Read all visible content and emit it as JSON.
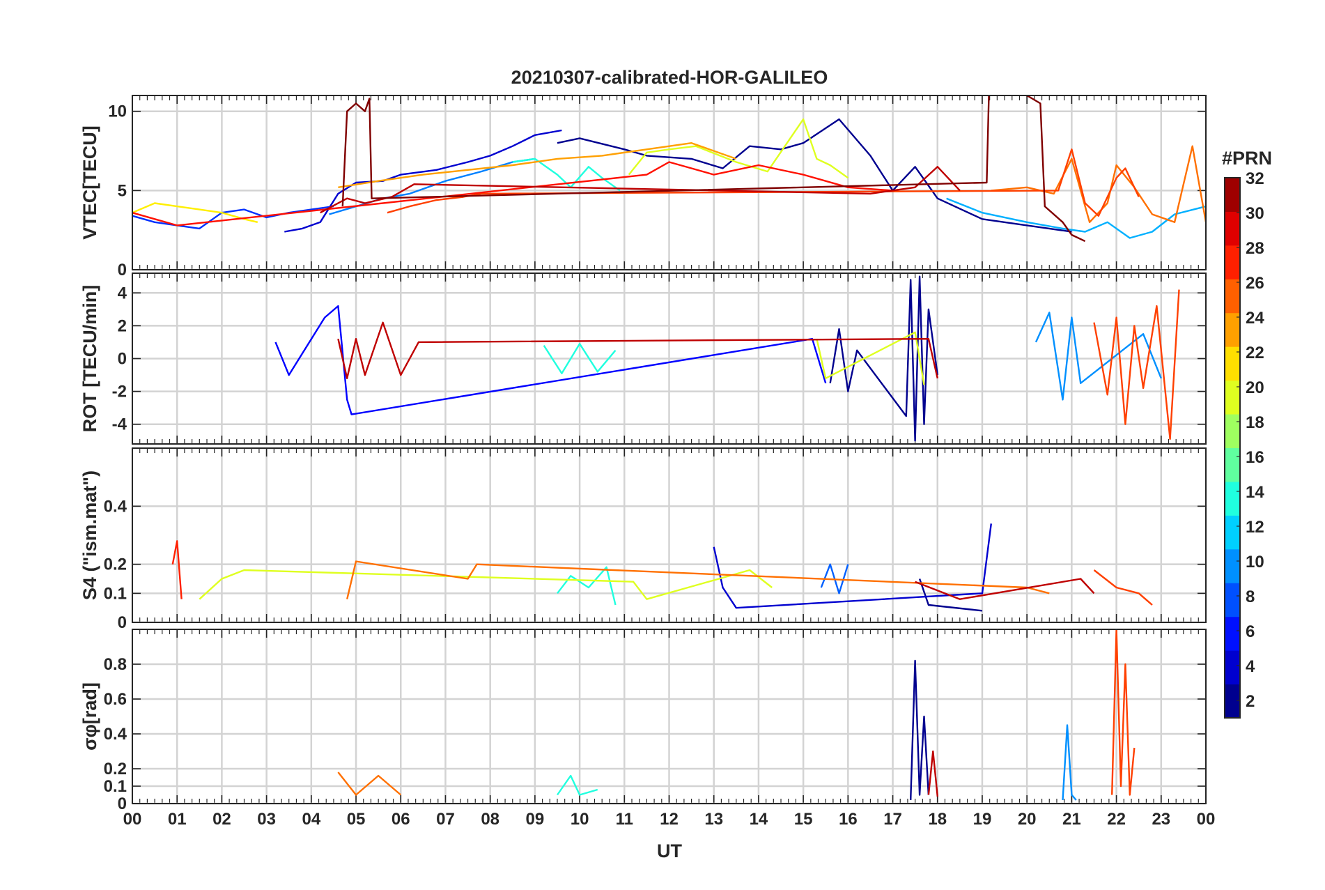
{
  "figure": {
    "title": "20210307-calibrated-HOR-GALILEO",
    "xlabel": "UT",
    "xticks": [
      "00",
      "01",
      "02",
      "03",
      "04",
      "05",
      "06",
      "07",
      "08",
      "09",
      "10",
      "11",
      "12",
      "13",
      "14",
      "15",
      "16",
      "17",
      "18",
      "19",
      "20",
      "21",
      "22",
      "23",
      "00"
    ]
  },
  "colorbar": {
    "label": "#PRN",
    "min": 1,
    "max": 32,
    "ticks": [
      "2",
      "4",
      "6",
      "8",
      "10",
      "12",
      "14",
      "16",
      "18",
      "20",
      "22",
      "24",
      "26",
      "28",
      "30",
      "32"
    ],
    "colormap": "jet (16 discrete steps)"
  },
  "chart_data": [
    {
      "type": "line",
      "name": "vtec-panel",
      "ylabel": "VTEC[TECU]",
      "xlim": [
        0,
        24
      ],
      "ylim": [
        0,
        11
      ],
      "yticks": [
        "0",
        "5",
        "10"
      ],
      "grid": true,
      "series": [
        {
          "prn": 1,
          "color": "#00008f",
          "x": [
            9.5,
            10.0,
            11.0,
            11.5,
            12.5,
            13.2,
            13.8,
            14.5,
            15.0,
            15.8,
            16.5,
            17.0,
            17.5,
            18.0,
            19.0,
            20.0,
            21.0
          ],
          "y": [
            8.0,
            8.3,
            7.6,
            7.2,
            7.0,
            6.4,
            7.8,
            7.6,
            8.0,
            9.5,
            7.2,
            5.0,
            6.5,
            4.5,
            3.2,
            2.8,
            2.4
          ]
        },
        {
          "prn": 3,
          "color": "#0000cf",
          "x": [
            3.4,
            3.8,
            4.2,
            4.6,
            5.0,
            5.6,
            6.0,
            6.8,
            7.5,
            8.0,
            8.5,
            9.0,
            9.6
          ],
          "y": [
            2.4,
            2.6,
            3.0,
            4.8,
            5.5,
            5.6,
            6.0,
            6.3,
            6.8,
            7.2,
            7.8,
            8.5,
            8.8
          ]
        },
        {
          "prn": 5,
          "color": "#0030ff",
          "x": [
            0.0,
            0.5,
            1.0,
            1.5,
            2.0,
            2.5,
            3.0,
            3.5,
            4.0,
            4.5
          ],
          "y": [
            3.4,
            3.0,
            2.8,
            2.6,
            3.6,
            3.8,
            3.3,
            3.6,
            3.8,
            4.0
          ]
        },
        {
          "prn": 8,
          "color": "#0080ff",
          "x": [
            4.4,
            5.0,
            5.6,
            6.2,
            7.0,
            7.8,
            8.5,
            9.0
          ],
          "y": [
            3.5,
            4.0,
            4.5,
            4.8,
            5.6,
            6.2,
            6.8,
            7.0
          ]
        },
        {
          "prn": 10,
          "color": "#00b0ff",
          "x": [
            18.2,
            19.0,
            20.0,
            20.8,
            21.3,
            21.8,
            22.3,
            22.8,
            23.3,
            24.0
          ],
          "y": [
            4.5,
            3.6,
            3.0,
            2.6,
            2.4,
            3.0,
            2.0,
            2.4,
            3.5,
            4.0
          ]
        },
        {
          "prn": 13,
          "color": "#20ffdf",
          "x": [
            8.5,
            9.0,
            9.5,
            9.8,
            10.2,
            10.5,
            10.9
          ],
          "y": [
            6.8,
            7.0,
            6.0,
            5.2,
            6.5,
            5.8,
            5.0
          ]
        },
        {
          "prn": 20,
          "color": "#dfff20",
          "x": [
            11.1,
            11.5,
            12.0,
            12.6,
            13.5,
            14.2,
            15.0,
            15.3,
            15.6,
            16.0
          ],
          "y": [
            6.0,
            7.4,
            7.6,
            7.8,
            6.8,
            6.2,
            9.5,
            7.0,
            6.6,
            5.8
          ]
        },
        {
          "prn": 19,
          "color": "#ffef00",
          "x": [
            0.0,
            0.5,
            1.0,
            1.5,
            2.0,
            2.5,
            2.8
          ],
          "y": [
            3.6,
            4.2,
            4.0,
            3.8,
            3.6,
            3.2,
            3.0
          ]
        },
        {
          "prn": 22,
          "color": "#ffa000",
          "x": [
            4.6,
            5.5,
            6.5,
            7.5,
            8.5,
            9.5,
            10.5,
            11.5,
            12.5,
            13.5
          ],
          "y": [
            5.2,
            5.6,
            6.0,
            6.3,
            6.6,
            7.0,
            7.2,
            7.6,
            8.0,
            7.0
          ]
        },
        {
          "prn": 24,
          "color": "#ff7000",
          "x": [
            19.2,
            20.0,
            20.6,
            21.0,
            21.4,
            21.8,
            22.0,
            22.4,
            22.8,
            23.3,
            23.7,
            24.0
          ],
          "y": [
            5.0,
            5.2,
            4.8,
            7.0,
            3.0,
            4.2,
            6.6,
            5.2,
            3.5,
            3.0,
            7.8,
            3.0
          ]
        },
        {
          "prn": 26,
          "color": "#ff4000",
          "x": [
            5.7,
            6.2,
            6.8,
            7.4,
            7.8,
            20.7,
            21.0,
            21.3,
            21.6,
            22.0,
            22.2,
            22.5
          ],
          "y": [
            3.6,
            4.0,
            4.4,
            4.6,
            4.8,
            5.0,
            7.6,
            4.2,
            3.4,
            5.8,
            6.4,
            4.6
          ]
        },
        {
          "prn": 28,
          "color": "#ff1000",
          "x": [
            0.0,
            0.5,
            1.0,
            11.5,
            12.0,
            12.5,
            13.0,
            14.0,
            15.0,
            16.0,
            17.0
          ],
          "y": [
            3.6,
            3.2,
            2.8,
            6.0,
            6.8,
            6.4,
            6.0,
            6.6,
            6.0,
            5.2,
            5.0
          ]
        },
        {
          "prn": 31,
          "color": "#bf0000",
          "x": [
            4.2,
            4.8,
            5.2,
            5.8,
            6.3,
            16.5,
            17.5,
            18.0,
            18.5
          ],
          "y": [
            3.6,
            4.5,
            4.2,
            4.6,
            5.4,
            4.8,
            5.2,
            6.5,
            5.0
          ]
        },
        {
          "prn": 32,
          "color": "#800000",
          "x": [
            4.7,
            4.8,
            5.0,
            5.2,
            5.3,
            5.35,
            19.1,
            19.15,
            19.5,
            20.0,
            20.3,
            20.4,
            20.8,
            21.0,
            21.3
          ],
          "y": [
            4.0,
            10.0,
            10.5,
            10.0,
            10.8,
            4.5,
            5.5,
            11.2,
            11.2,
            11.0,
            10.5,
            4.0,
            3.0,
            2.2,
            1.8
          ]
        }
      ]
    },
    {
      "type": "line",
      "name": "rot-panel",
      "ylabel": "ROT [TECU/min]",
      "xlim": [
        0,
        24
      ],
      "ylim": [
        -5.2,
        5.2
      ],
      "yticks": [
        "-4",
        "-2",
        "0",
        "2",
        "4"
      ],
      "grid": true,
      "series": [
        {
          "prn": 1,
          "color": "#00008f",
          "x": [
            15.6,
            15.8,
            16.0,
            16.2,
            17.3,
            17.4,
            17.5,
            17.6,
            17.7,
            17.8,
            18.0
          ],
          "y": [
            -1.5,
            1.8,
            -2.0,
            0.5,
            -3.5,
            4.8,
            -5.0,
            5.0,
            -4.0,
            3.0,
            -1.0
          ]
        },
        {
          "prn": 4,
          "color": "#0000ff",
          "x": [
            3.2,
            3.5,
            4.3,
            4.6,
            4.8,
            4.9,
            15.2,
            15.5
          ],
          "y": [
            1.0,
            -1.0,
            2.5,
            3.2,
            -2.5,
            -3.4,
            1.2,
            -1.5
          ]
        },
        {
          "prn": 9,
          "color": "#0090ff",
          "x": [
            20.2,
            20.5,
            20.8,
            21.0,
            21.2,
            22.6,
            23.0
          ],
          "y": [
            1.0,
            2.8,
            -2.5,
            2.5,
            -1.5,
            1.5,
            -1.2
          ]
        },
        {
          "prn": 13,
          "color": "#20ffdf",
          "x": [
            9.2,
            9.6,
            10.0,
            10.4,
            10.8
          ],
          "y": [
            0.8,
            -0.9,
            0.9,
            -0.8,
            0.5
          ]
        },
        {
          "prn": 20,
          "color": "#dfff20",
          "x": [
            15.3,
            15.5,
            17.5,
            17.7
          ],
          "y": [
            1.2,
            -1.2,
            1.6,
            -1.6
          ]
        },
        {
          "prn": 26,
          "color": "#ff4000",
          "x": [
            21.5,
            21.8,
            22.0,
            22.2,
            22.4,
            22.6,
            22.9,
            23.2,
            23.4
          ],
          "y": [
            2.2,
            -2.2,
            2.5,
            -4.0,
            2.0,
            -1.8,
            3.2,
            -4.9,
            4.2
          ]
        },
        {
          "prn": 31,
          "color": "#bf0000",
          "x": [
            4.6,
            4.8,
            5.0,
            5.2,
            5.6,
            6.0,
            6.4,
            17.8,
            18.0
          ],
          "y": [
            1.2,
            -1.2,
            1.2,
            -1.0,
            2.2,
            -1.0,
            1.0,
            1.2,
            -1.2
          ]
        }
      ]
    },
    {
      "type": "line",
      "name": "s4-panel",
      "ylabel": "S4 (\"ism.mat\")",
      "xlim": [
        0,
        24
      ],
      "ylim": [
        0,
        0.6
      ],
      "yticks": [
        "0",
        "0.1",
        "0.2",
        "0.4"
      ],
      "grid": true,
      "series": [
        {
          "prn": 1,
          "color": "#00008f",
          "x": [
            17.6,
            17.8,
            19.0
          ],
          "y": [
            0.15,
            0.06,
            0.04
          ]
        },
        {
          "prn": 3,
          "color": "#0000cf",
          "x": [
            13.0,
            13.2,
            13.5,
            19.0,
            19.2
          ],
          "y": [
            0.26,
            0.12,
            0.05,
            0.1,
            0.34
          ]
        },
        {
          "prn": 7,
          "color": "#0060ff",
          "x": [
            15.4,
            15.6,
            15.8,
            16.0
          ],
          "y": [
            0.12,
            0.2,
            0.1,
            0.2
          ]
        },
        {
          "prn": 13,
          "color": "#20ffdf",
          "x": [
            9.5,
            9.8,
            10.2,
            10.6,
            10.8
          ],
          "y": [
            0.1,
            0.16,
            0.12,
            0.19,
            0.06
          ]
        },
        {
          "prn": 20,
          "color": "#dfff20",
          "x": [
            1.5,
            2.0,
            2.5,
            11.2,
            11.5,
            13.8,
            14.3
          ],
          "y": [
            0.08,
            0.15,
            0.18,
            0.14,
            0.08,
            0.18,
            0.12
          ]
        },
        {
          "prn": 24,
          "color": "#ff7000",
          "x": [
            4.8,
            5.0,
            7.5,
            7.7,
            20.0,
            20.5
          ],
          "y": [
            0.08,
            0.21,
            0.15,
            0.2,
            0.12,
            0.1
          ]
        },
        {
          "prn": 26,
          "color": "#ff4000",
          "x": [
            21.5,
            22.0,
            22.5,
            22.8
          ],
          "y": [
            0.18,
            0.12,
            0.1,
            0.06
          ]
        },
        {
          "prn": 27,
          "color": "#ff2000",
          "x": [
            0.9,
            1.0,
            1.1
          ],
          "y": [
            0.2,
            0.28,
            0.08
          ]
        },
        {
          "prn": 31,
          "color": "#bf0000",
          "x": [
            17.5,
            18.5,
            21.2,
            21.5
          ],
          "y": [
            0.14,
            0.08,
            0.15,
            0.1
          ]
        }
      ]
    },
    {
      "type": "line",
      "name": "sigma-phi-panel",
      "ylabel": "σφ[rad]",
      "xlim": [
        0,
        24
      ],
      "ylim": [
        0,
        1.0
      ],
      "yticks": [
        "0",
        "0.1",
        "0.2",
        "0.4",
        "0.6",
        "0.8"
      ],
      "grid": true,
      "series": [
        {
          "prn": 1,
          "color": "#00008f",
          "x": [
            17.4,
            17.5,
            17.6,
            17.7,
            17.8
          ],
          "y": [
            0.02,
            0.82,
            0.05,
            0.5,
            0.05
          ]
        },
        {
          "prn": 9,
          "color": "#0090ff",
          "x": [
            20.8,
            20.9,
            21.0,
            21.1
          ],
          "y": [
            0.02,
            0.45,
            0.05,
            0.02
          ]
        },
        {
          "prn": 13,
          "color": "#20ffdf",
          "x": [
            9.5,
            9.8,
            10.0,
            10.4
          ],
          "y": [
            0.05,
            0.16,
            0.05,
            0.08
          ]
        },
        {
          "prn": 24,
          "color": "#ff7000",
          "x": [
            4.6,
            5.0,
            5.5,
            6.0
          ],
          "y": [
            0.18,
            0.05,
            0.16,
            0.05
          ]
        },
        {
          "prn": 26,
          "color": "#ff4000",
          "x": [
            21.9,
            22.0,
            22.1,
            22.2,
            22.3,
            22.4
          ],
          "y": [
            0.05,
            1.0,
            0.1,
            0.8,
            0.05,
            0.32
          ]
        },
        {
          "prn": 31,
          "color": "#bf0000",
          "x": [
            17.8,
            17.9,
            18.0
          ],
          "y": [
            0.05,
            0.3,
            0.04
          ]
        }
      ]
    }
  ]
}
